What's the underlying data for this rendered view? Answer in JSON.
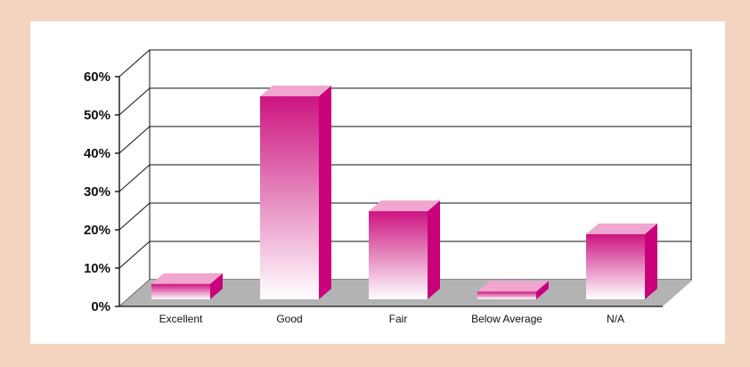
{
  "chart_data": {
    "type": "bar",
    "style": "3d",
    "title": "",
    "xlabel": "",
    "ylabel": "",
    "categories": [
      "Excellent",
      "Good",
      "Fair",
      "Below Average",
      "N/A"
    ],
    "values": [
      4,
      53,
      23,
      2,
      17
    ],
    "ylim": [
      0,
      60
    ],
    "yticks": [
      0,
      10,
      20,
      30,
      40,
      50,
      60
    ],
    "ytick_labels": [
      "0%",
      "10%",
      "20%",
      "30%",
      "40%",
      "50%",
      "60%"
    ],
    "grid": true,
    "legend": "none",
    "colors": {
      "bar_top": "#cc1480",
      "bar_bottom": "#ffffff",
      "bar_side": "#c8007a",
      "bar_cap": "#f0a6cf",
      "floor": "#b3b3b3",
      "background": "#f2d4c1"
    }
  }
}
